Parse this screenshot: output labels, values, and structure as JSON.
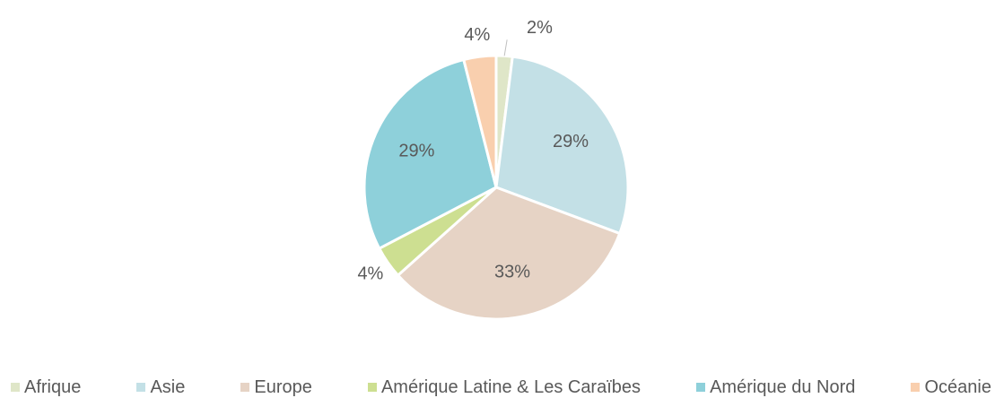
{
  "chart_data": {
    "type": "pie",
    "categories": [
      "Afrique",
      "Asie",
      "Europe",
      "Amérique Latine & Les Caraïbes",
      "Amérique du Nord",
      "Océanie"
    ],
    "values": [
      2,
      29,
      33,
      4,
      29,
      4
    ],
    "value_labels": [
      "2%",
      "29%",
      "33%",
      "4%",
      "29%",
      "4%"
    ],
    "colors": [
      "#dfe6c8",
      "#c3e0e6",
      "#e6d3c5",
      "#cddf91",
      "#8ed0da",
      "#f9cfae"
    ],
    "legend": "bottom"
  }
}
